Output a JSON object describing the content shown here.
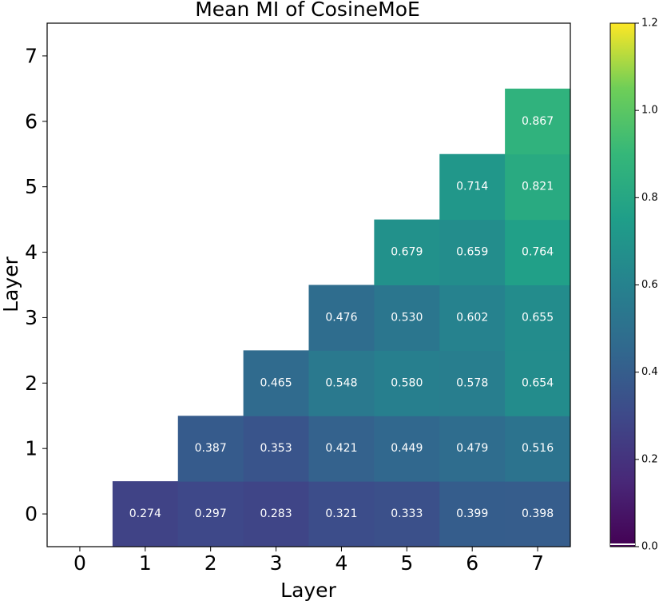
{
  "chart_data": {
    "type": "heatmap",
    "title": "Mean MI of CosineMoE",
    "xlabel": "Layer",
    "ylabel": "Layer",
    "x_ticks": [
      "0",
      "1",
      "2",
      "3",
      "4",
      "5",
      "6",
      "7"
    ],
    "y_ticks": [
      "0",
      "1",
      "2",
      "3",
      "4",
      "5",
      "6",
      "7"
    ],
    "xlim": [
      -0.5,
      7.5
    ],
    "ylim": [
      -0.5,
      7.5
    ],
    "colormap": "viridis",
    "colorbar": {
      "range": [
        0.0,
        1.2
      ],
      "ticks": [
        "0.0",
        "0.2",
        "0.4",
        "0.6",
        "0.8",
        "1.0",
        "1.2"
      ]
    },
    "cells": [
      {
        "x": 1,
        "y": 0,
        "value": 0.274,
        "label": "0.274"
      },
      {
        "x": 2,
        "y": 0,
        "value": 0.297,
        "label": "0.297"
      },
      {
        "x": 3,
        "y": 0,
        "value": 0.283,
        "label": "0.283"
      },
      {
        "x": 4,
        "y": 0,
        "value": 0.321,
        "label": "0.321"
      },
      {
        "x": 5,
        "y": 0,
        "value": 0.333,
        "label": "0.333"
      },
      {
        "x": 6,
        "y": 0,
        "value": 0.399,
        "label": "0.399"
      },
      {
        "x": 7,
        "y": 0,
        "value": 0.398,
        "label": "0.398"
      },
      {
        "x": 2,
        "y": 1,
        "value": 0.387,
        "label": "0.387"
      },
      {
        "x": 3,
        "y": 1,
        "value": 0.353,
        "label": "0.353"
      },
      {
        "x": 4,
        "y": 1,
        "value": 0.421,
        "label": "0.421"
      },
      {
        "x": 5,
        "y": 1,
        "value": 0.449,
        "label": "0.449"
      },
      {
        "x": 6,
        "y": 1,
        "value": 0.479,
        "label": "0.479"
      },
      {
        "x": 7,
        "y": 1,
        "value": 0.516,
        "label": "0.516"
      },
      {
        "x": 3,
        "y": 2,
        "value": 0.465,
        "label": "0.465"
      },
      {
        "x": 4,
        "y": 2,
        "value": 0.548,
        "label": "0.548"
      },
      {
        "x": 5,
        "y": 2,
        "value": 0.58,
        "label": "0.580"
      },
      {
        "x": 6,
        "y": 2,
        "value": 0.578,
        "label": "0.578"
      },
      {
        "x": 7,
        "y": 2,
        "value": 0.654,
        "label": "0.654"
      },
      {
        "x": 4,
        "y": 3,
        "value": 0.476,
        "label": "0.476"
      },
      {
        "x": 5,
        "y": 3,
        "value": 0.53,
        "label": "0.530"
      },
      {
        "x": 6,
        "y": 3,
        "value": 0.602,
        "label": "0.602"
      },
      {
        "x": 7,
        "y": 3,
        "value": 0.655,
        "label": "0.655"
      },
      {
        "x": 5,
        "y": 4,
        "value": 0.679,
        "label": "0.679"
      },
      {
        "x": 6,
        "y": 4,
        "value": 0.659,
        "label": "0.659"
      },
      {
        "x": 7,
        "y": 4,
        "value": 0.764,
        "label": "0.764"
      },
      {
        "x": 6,
        "y": 5,
        "value": 0.714,
        "label": "0.714"
      },
      {
        "x": 7,
        "y": 5,
        "value": 0.821,
        "label": "0.821"
      },
      {
        "x": 7,
        "y": 6,
        "value": 0.867,
        "label": "0.867"
      }
    ]
  }
}
